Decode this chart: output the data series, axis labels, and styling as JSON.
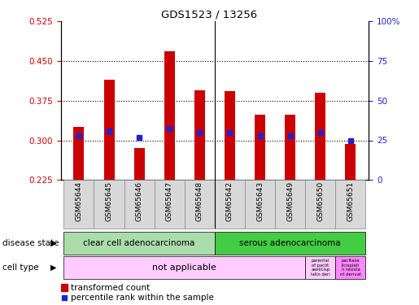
{
  "title": "GDS1523 / 13256",
  "samples": [
    "GSM65644",
    "GSM65645",
    "GSM65646",
    "GSM65647",
    "GSM65648",
    "GSM65642",
    "GSM65643",
    "GSM65649",
    "GSM65650",
    "GSM65651"
  ],
  "bar_values": [
    0.325,
    0.415,
    0.285,
    0.468,
    0.395,
    0.393,
    0.348,
    0.348,
    0.39,
    0.293
  ],
  "bar_bottom": 0.225,
  "percentile_values": [
    0.308,
    0.318,
    0.305,
    0.323,
    0.315,
    0.315,
    0.308,
    0.308,
    0.315,
    0.3
  ],
  "ylim_left": [
    0.225,
    0.525
  ],
  "yticks_left": [
    0.225,
    0.3,
    0.375,
    0.45,
    0.525
  ],
  "ylim_right": [
    0,
    100
  ],
  "yticks_right": [
    0,
    25,
    50,
    75,
    100
  ],
  "yticklabels_right": [
    "0",
    "25",
    "50",
    "75",
    "100%"
  ],
  "bar_color": "#cc0000",
  "percentile_color": "#2222cc",
  "dotted_lines": [
    0.3,
    0.375,
    0.45
  ],
  "bg_color": "#ffffff",
  "disease_state_groups": [
    {
      "label": "clear cell adenocarcinoma",
      "start": 0,
      "end": 5,
      "color": "#aaddaa"
    },
    {
      "label": "serous adenocarcinoma",
      "start": 5,
      "end": 10,
      "color": "#44cc44"
    }
  ],
  "cell_type_main_label": "not applicable",
  "cell_type_main_color": "#ffccff",
  "cell_type_extra_1_label": "parental\nof paclit\naxel/cisp\nlatin deri",
  "cell_type_extra_1_color": "#ffccff",
  "cell_type_extra_2_label": "pacltaxe\nl/cisplati\nn resista\nnt derivat",
  "cell_type_extra_2_color": "#ff88ff",
  "separator_after_idx": 4,
  "tick_label_color_left": "#cc0000",
  "tick_label_color_right": "#2222cc",
  "bar_width": 0.35
}
